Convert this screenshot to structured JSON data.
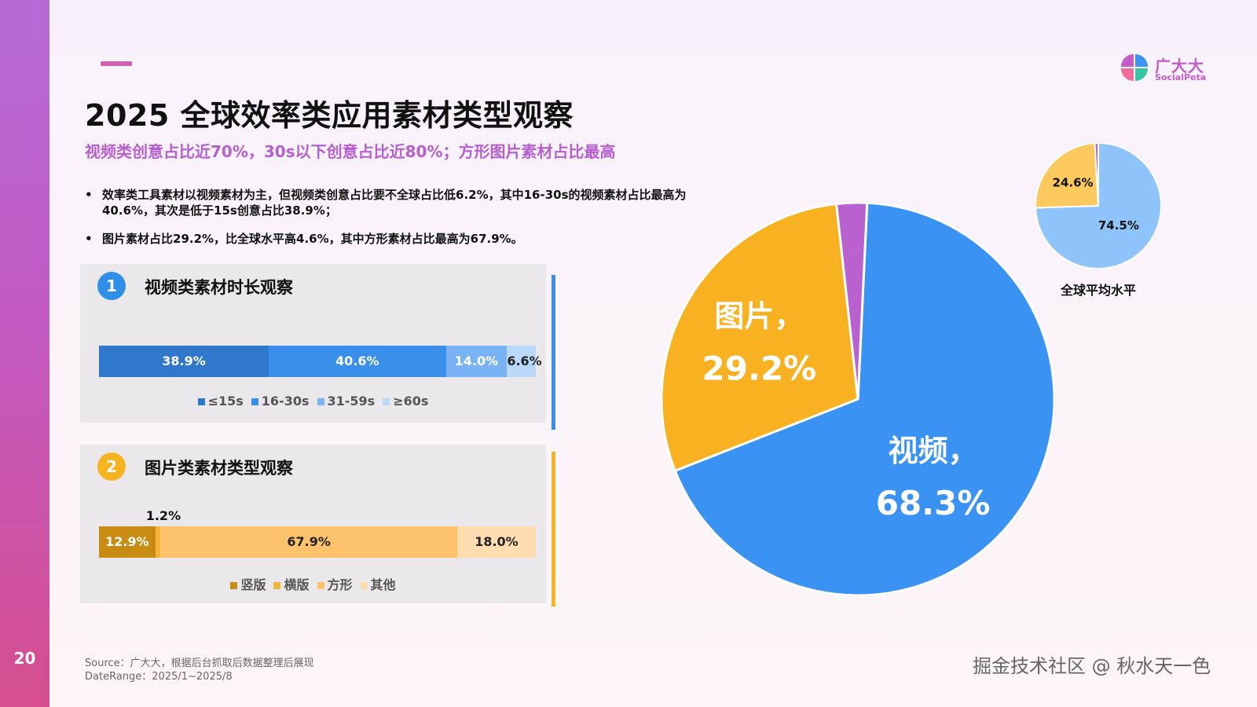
{
  "page_number": "20",
  "title": "2025 全球效率类应用素材类型观察",
  "subtitle": "视频类创意占比近70%，30s以下创意占比近80%；方形图片素材占比最高",
  "bullets": [
    "效率类工具素材以视频素材为主，但视频类创意占比要不全球占比低6.2%，其中16-30s的视频素材占比最高为40.6%，其次是低于15s创意占比38.9%；",
    "图片素材占比29.2%，比全球水平高4.6%，其中方形素材占比最高为67.9%。"
  ],
  "logo": {
    "cn": "广大大",
    "en": "SocialPeta"
  },
  "source": {
    "line1": "Source：广大大，根据后台抓取后数据整理后展现",
    "line2": "DateRange：2025/1~2025/8"
  },
  "watermark": "掘金技术社区 @ 秋水天一色",
  "colors": {
    "video_blue": "#3a93f2",
    "image_yellow": "#f7b121",
    "other_purple": "#b961cf",
    "global_blue": "#8ec4fa",
    "global_yellow": "#fbc95d",
    "accent_purple": "#b65fce"
  },
  "chart_data": [
    {
      "type": "bar",
      "stacked": true,
      "badge": "1",
      "title": "视频类素材时长观察",
      "categories": [
        "视频"
      ],
      "series": [
        {
          "name": "≤15s",
          "values": [
            38.9
          ],
          "label": "38.9%",
          "color": "#2f78cc"
        },
        {
          "name": "16-30s",
          "values": [
            40.6
          ],
          "label": "40.6%",
          "color": "#3a8fea"
        },
        {
          "name": "31-59s",
          "values": [
            14.0
          ],
          "label": "14.0%",
          "color": "#79b3f5"
        },
        {
          "name": "≥60s",
          "values": [
            6.6
          ],
          "label": "6.6%",
          "color": "#b9d8fa"
        }
      ],
      "orientation": "horizontal",
      "legend": "bottom"
    },
    {
      "type": "bar",
      "stacked": true,
      "badge": "2",
      "title": "图片类素材类型观察",
      "categories": [
        "图片"
      ],
      "series": [
        {
          "name": "竖版",
          "values": [
            12.9
          ],
          "label": "12.9%",
          "color": "#c98c12"
        },
        {
          "name": "横版",
          "values": [
            1.2
          ],
          "label": "1.2%",
          "color": "#f2b63a"
        },
        {
          "name": "方形",
          "values": [
            67.9
          ],
          "label": "67.9%",
          "color": "#fcc36c"
        },
        {
          "name": "其他",
          "values": [
            18.0
          ],
          "label": "18.0%",
          "color": "#fddcb0"
        }
      ],
      "orientation": "horizontal",
      "legend": "bottom"
    },
    {
      "type": "pie",
      "slices": [
        {
          "name": "视频",
          "value": 68.3,
          "label_name": "视频，",
          "label_value": "68.3%",
          "color": "#3a93f2"
        },
        {
          "name": "图片",
          "value": 29.2,
          "label_name": "图片，",
          "label_value": "29.2%",
          "color": "#f7b121"
        },
        {
          "name": "",
          "value": 2.5,
          "color": "#b961cf"
        }
      ]
    },
    {
      "type": "pie",
      "title": "全球平均水平",
      "slices": [
        {
          "name": "",
          "value": 74.5,
          "label": "74.5%",
          "color": "#8ec4fa"
        },
        {
          "name": "",
          "value": 24.6,
          "label": "24.6%",
          "color": "#fbc95d"
        },
        {
          "name": "",
          "value": 0.9,
          "color": "#b961cf"
        }
      ]
    }
  ]
}
